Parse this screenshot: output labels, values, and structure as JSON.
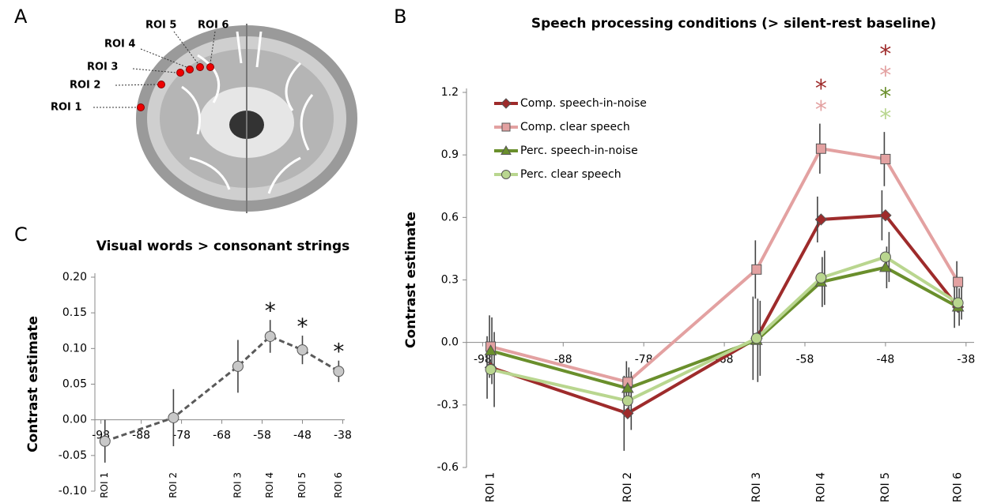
{
  "panel_labels": [
    "A",
    "B",
    "C"
  ],
  "brain": {
    "roi_labels": [
      "ROI 1",
      "ROI 2",
      "ROI 3",
      "ROI 4",
      "ROI 5",
      "ROI 6"
    ]
  },
  "chart_data": [
    {
      "type": "line",
      "title": "Speech processing conditions (> silent-rest baseline)",
      "y_label": "Contrast estimate",
      "x": [
        -97,
        -80,
        -64,
        -56,
        -48,
        -39
      ],
      "x_labels": [
        "ROI 1",
        "ROI 2",
        "ROI 3",
        "ROI 4",
        "ROI 5",
        "ROI 6"
      ],
      "xlim": [
        -100,
        -37
      ],
      "xticks": [
        -98,
        -88,
        -78,
        -68,
        -58,
        -48,
        -38
      ],
      "ylim": [
        -0.6,
        1.2
      ],
      "yticks": [
        -0.6,
        -0.3,
        {
          "value": 0,
          "label": "0.0"
        },
        0.3,
        0.6,
        0.9,
        1.2
      ],
      "legend": "top-left",
      "significance_label": "*",
      "series": [
        {
          "name": "Comp. speech-in-noise",
          "color": "#9e2b2b",
          "marker": "diamond",
          "values": [
            -0.12,
            -0.34,
            0.02,
            0.59,
            0.61,
            0.17
          ],
          "errors": [
            0.15,
            0.18,
            0.2,
            0.11,
            0.12,
            0.1
          ],
          "significant": [
            false,
            false,
            false,
            true,
            true,
            false
          ]
        },
        {
          "name": "Comp. clear speech",
          "color": "#e3a1a1",
          "marker": "square",
          "values": [
            -0.02,
            -0.19,
            0.35,
            0.93,
            0.88,
            0.29
          ],
          "errors": [
            0.15,
            0.1,
            0.14,
            0.12,
            0.13,
            0.1
          ],
          "significant": [
            false,
            false,
            false,
            true,
            true,
            false
          ]
        },
        {
          "name": "Perc. speech-in-noise",
          "color": "#6a8f2c",
          "marker": "triangle",
          "values": [
            -0.04,
            -0.22,
            0.01,
            0.29,
            0.36,
            0.17
          ],
          "errors": [
            0.16,
            0.1,
            0.2,
            0.12,
            0.1,
            0.09
          ],
          "significant": [
            false,
            false,
            false,
            false,
            true,
            false
          ]
        },
        {
          "name": "Perc. clear speech",
          "color": "#b9d68f",
          "marker": "circle",
          "values": [
            -0.13,
            -0.28,
            0.02,
            0.31,
            0.41,
            0.19
          ],
          "errors": [
            0.18,
            0.14,
            0.18,
            0.13,
            0.12,
            0.08
          ],
          "significant": [
            false,
            false,
            false,
            false,
            true,
            false
          ]
        }
      ]
    },
    {
      "type": "line",
      "title": "Visual words > consonant strings",
      "y_label": "Contrast estimate",
      "x": [
        -97,
        -80,
        -64,
        -56,
        -48,
        -39
      ],
      "x_labels": [
        "ROI 1",
        "ROI 2",
        "ROI 3",
        "ROI 4",
        "ROI 5",
        "ROI 6"
      ],
      "xlim": [
        -99.5,
        -37.5
      ],
      "xticks": [
        -98,
        -88,
        -78,
        -68,
        -58,
        -48,
        -38
      ],
      "ylim": [
        -0.1,
        0.2
      ],
      "yticks": [
        {
          "value": -0.1,
          "label": "-0.10"
        },
        -0.05,
        {
          "value": 0,
          "label": "0.00"
        },
        0.05,
        {
          "value": 0.1,
          "label": "0.10"
        },
        0.15,
        {
          "value": 0.2,
          "label": "0.20"
        }
      ],
      "significance_label": "*",
      "series": [
        {
          "color": "#5a5a5a",
          "marker": "circle",
          "line_style": "dashed",
          "values": [
            -0.03,
            0.003,
            0.075,
            0.117,
            0.098,
            0.068
          ],
          "errors": [
            0.03,
            0.04,
            0.037,
            0.023,
            0.02,
            0.015
          ],
          "significant": [
            false,
            false,
            false,
            true,
            true,
            true
          ]
        }
      ]
    }
  ]
}
